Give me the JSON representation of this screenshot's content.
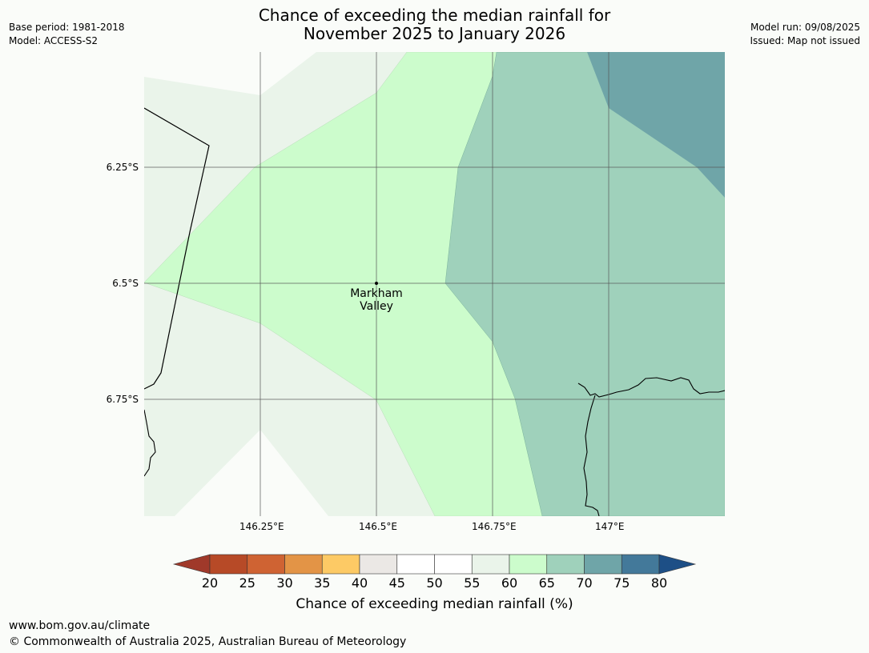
{
  "title": {
    "line1": "Chance of exceeding the median rainfall for",
    "line2": "November 2025 to January 2026"
  },
  "meta_left": {
    "base_period": "Base period: 1981-2018",
    "model": "Model: ACCESS-S2"
  },
  "meta_right": {
    "model_run": "Model run: 09/08/2025",
    "issued": "Issued: Map not issued"
  },
  "map": {
    "lat_labels": [
      "6.25°S",
      "6.5°S",
      "6.75°S"
    ],
    "lon_labels": [
      "146.25°E",
      "146.5°E",
      "146.75°E",
      "147°E"
    ],
    "place": {
      "name_line1": "Markham",
      "name_line2": "Valley",
      "lat": -6.5,
      "lon": 146.5
    },
    "category_colors": {
      "45-55": "#f5f5f3",
      "55-60": "#eaf4ea",
      "60-65": "#ccfccc",
      "65-70": "#9fd1bb",
      "70-75": "#6fa5a8"
    }
  },
  "colorbar": {
    "ticks": [
      "20",
      "25",
      "30",
      "35",
      "40",
      "45",
      "50",
      "55",
      "60",
      "65",
      "70",
      "75",
      "80"
    ],
    "colors": [
      "#a0392a",
      "#b74a27",
      "#cf6333",
      "#e39446",
      "#fdca65",
      "#ebe8e5",
      "#ffffff",
      "#ffffff",
      "#eaf4ea",
      "#ccfccc",
      "#9fd1bb",
      "#6fa5a8",
      "#43799a",
      "#1d4f86"
    ],
    "label": "Chance of exceeding median rainfall (%)"
  },
  "footer": {
    "url": "www.bom.gov.au/climate",
    "copyright": "© Commonwealth of Australia 2025, Australian Bureau of Meteorology"
  }
}
